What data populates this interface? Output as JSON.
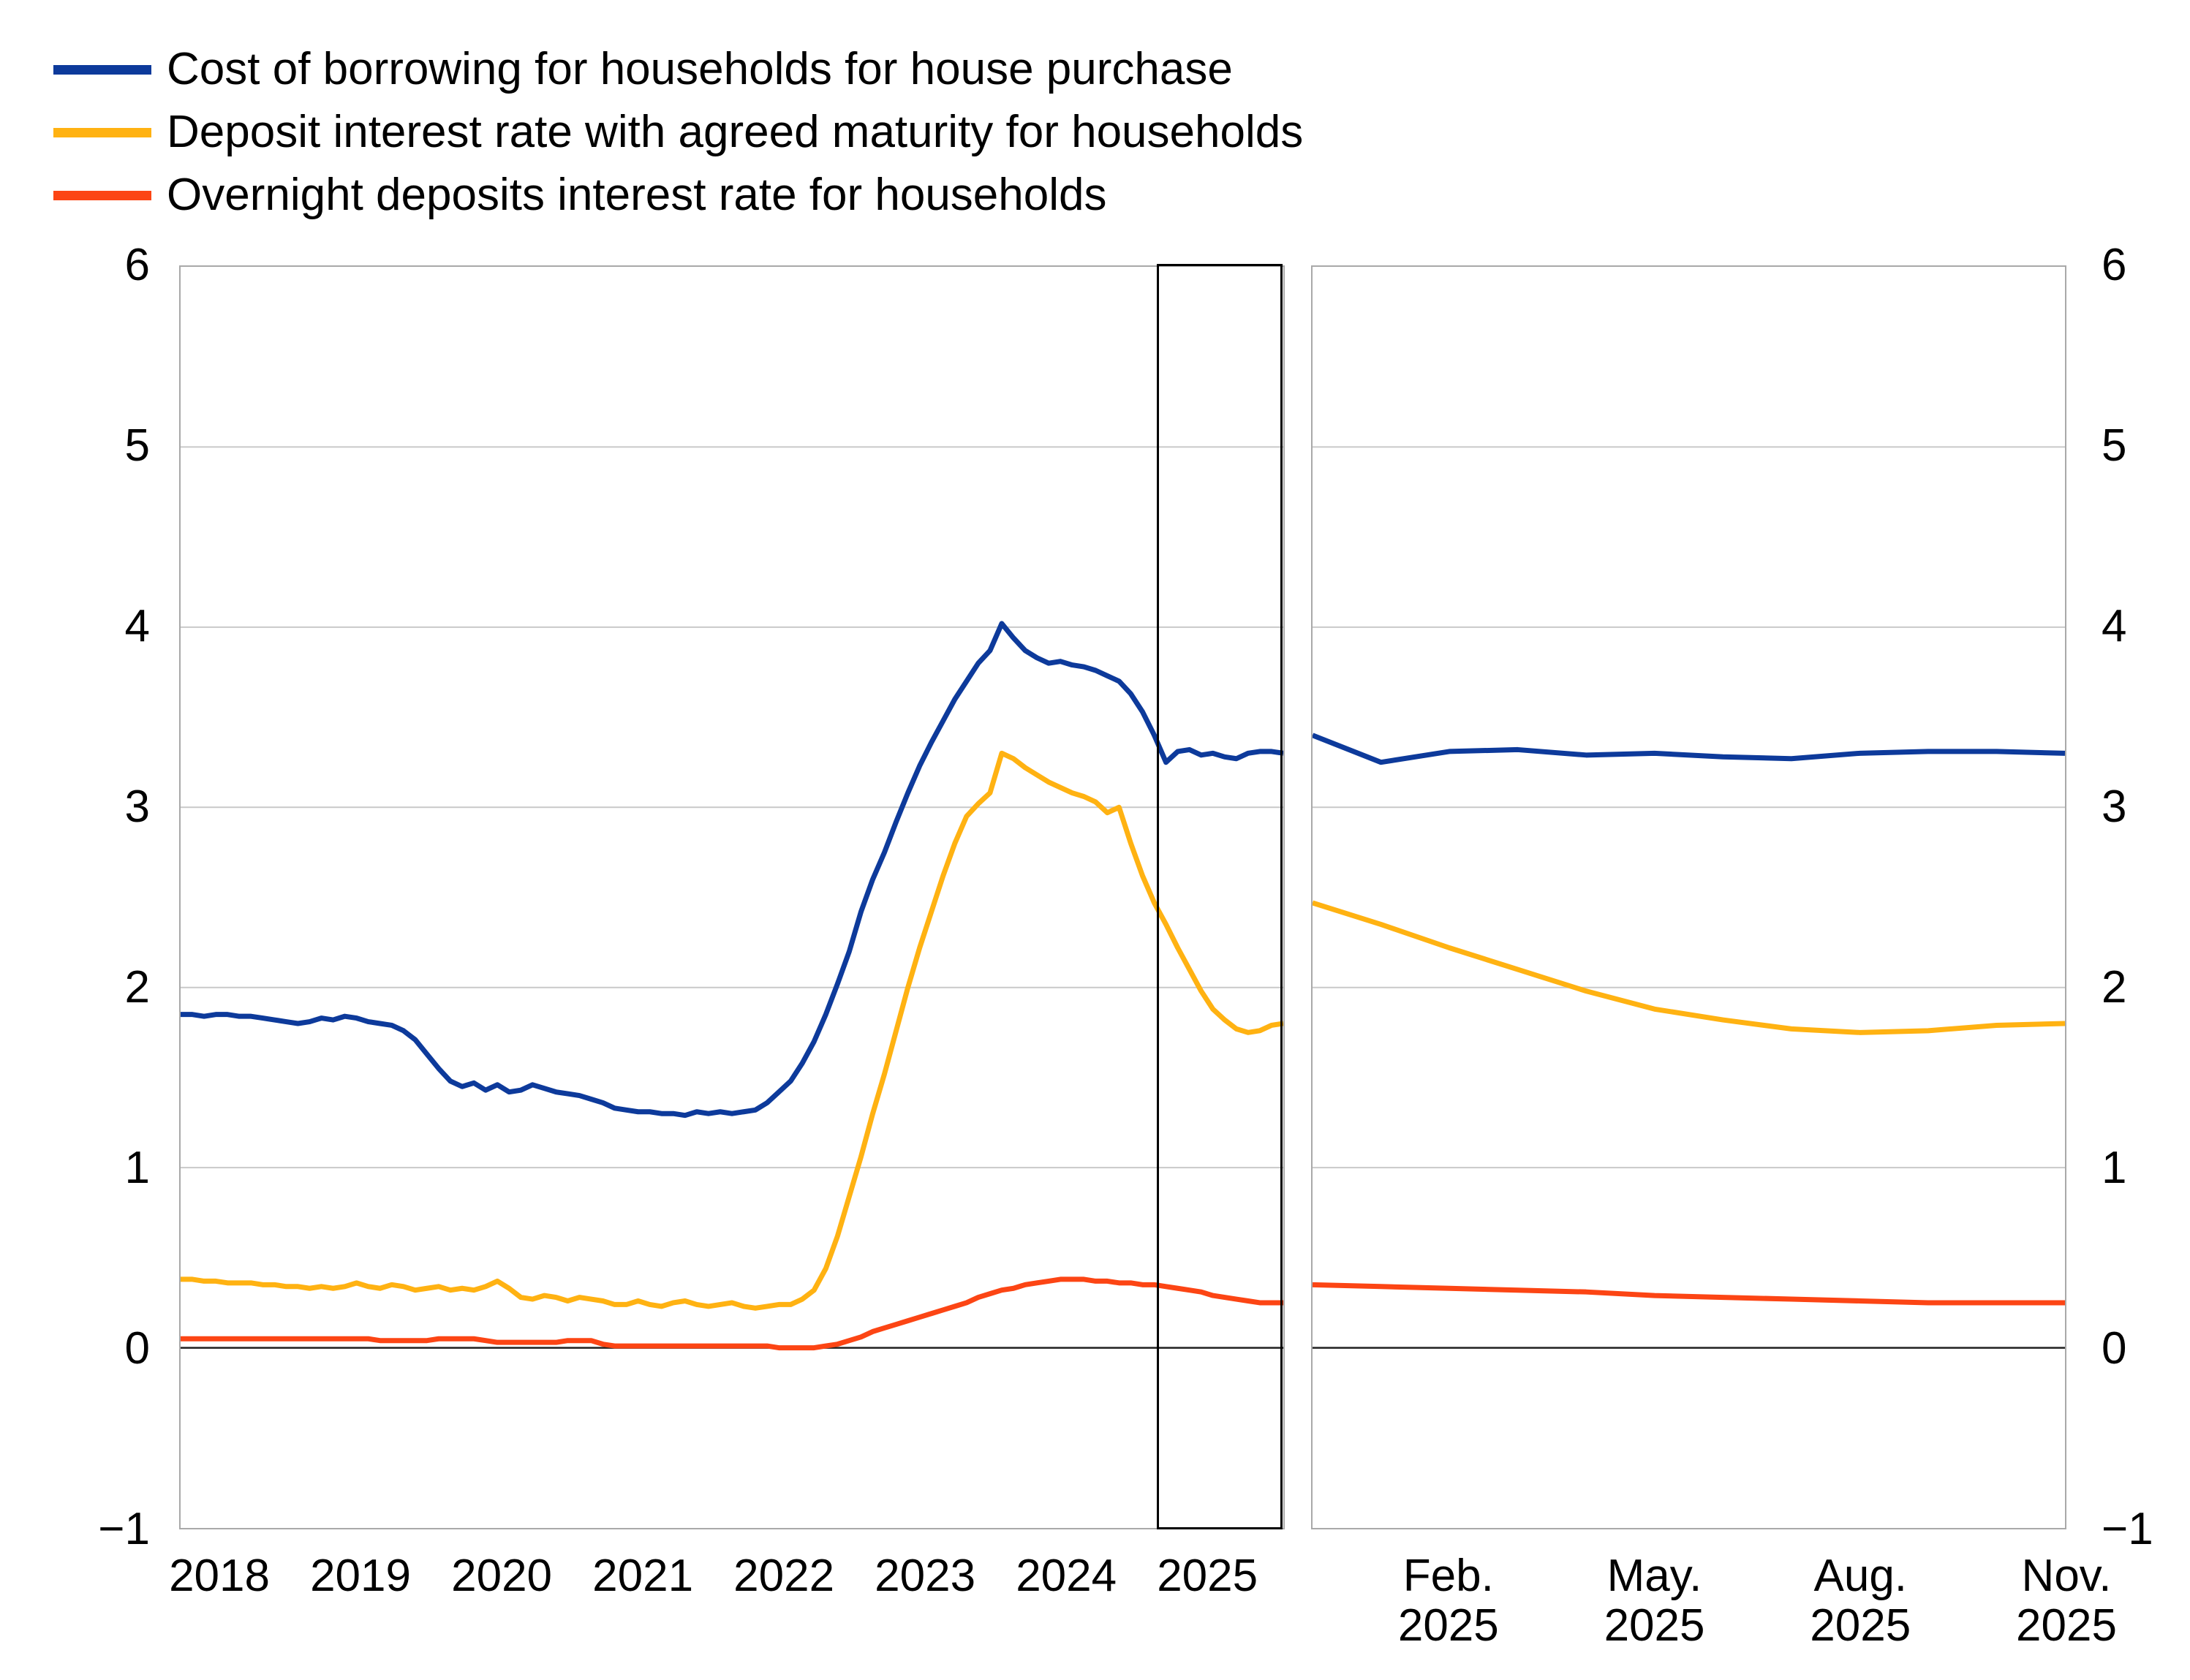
{
  "legend": {
    "items": [
      {
        "label": "Cost of borrowing for households for house purchase",
        "color": "#0d3a9b"
      },
      {
        "label": "Deposit interest rate with agreed maturity for households",
        "color": "#ffb212"
      },
      {
        "label": "Overnight deposits interest rate for households",
        "color": "#fc4514"
      }
    ]
  },
  "chart_data": {
    "type": "line",
    "title": "",
    "frequency": "monthly",
    "x_start": "2018-01",
    "x_end": "2025-11",
    "y_axis": {
      "min": -1,
      "max": 6,
      "tick_values": [
        6,
        5,
        4,
        3,
        2,
        1,
        0,
        -1
      ],
      "tick_labels": [
        "6",
        "5",
        "4",
        "3",
        "2",
        "1",
        "0",
        "−1"
      ],
      "grid_values": [
        5,
        4,
        3,
        2,
        1
      ],
      "zero_line_value": 0,
      "labels_on_both_sides": true
    },
    "left_panel_year_ticks": [
      {
        "label": "2018",
        "month_index": 0
      },
      {
        "label": "2019",
        "month_index": 12
      },
      {
        "label": "2020",
        "month_index": 24
      },
      {
        "label": "2021",
        "month_index": 36
      },
      {
        "label": "2022",
        "month_index": 48
      },
      {
        "label": "2023",
        "month_index": 60
      },
      {
        "label": "2024",
        "month_index": 72
      },
      {
        "label": "2025",
        "month_index": 84
      }
    ],
    "detail_panel": {
      "start_index": 83,
      "months": 12,
      "tick_labels": [
        {
          "month": "Feb.",
          "year": "2025",
          "index": 2
        },
        {
          "month": "May.",
          "year": "2025",
          "index": 5
        },
        {
          "month": "Aug.",
          "year": "2025",
          "index": 8
        },
        {
          "month": "Nov.",
          "year": "2025",
          "index": 11
        }
      ]
    },
    "highlight_box": {
      "start_index": 83,
      "end_index": 94
    },
    "series": [
      {
        "name": "Cost of borrowing for households for house purchase",
        "color": "#0d3a9b",
        "values": [
          1.85,
          1.85,
          1.84,
          1.85,
          1.85,
          1.84,
          1.84,
          1.83,
          1.82,
          1.81,
          1.8,
          1.81,
          1.83,
          1.82,
          1.84,
          1.83,
          1.81,
          1.8,
          1.79,
          1.76,
          1.71,
          1.63,
          1.55,
          1.48,
          1.45,
          1.47,
          1.43,
          1.46,
          1.42,
          1.43,
          1.46,
          1.44,
          1.42,
          1.41,
          1.4,
          1.38,
          1.36,
          1.33,
          1.32,
          1.31,
          1.31,
          1.3,
          1.3,
          1.29,
          1.31,
          1.3,
          1.31,
          1.3,
          1.31,
          1.32,
          1.36,
          1.42,
          1.48,
          1.58,
          1.7,
          1.85,
          2.02,
          2.2,
          2.42,
          2.6,
          2.75,
          2.92,
          3.08,
          3.23,
          3.36,
          3.48,
          3.6,
          3.7,
          3.8,
          3.87,
          4.02,
          3.94,
          3.87,
          3.83,
          3.8,
          3.81,
          3.79,
          3.78,
          3.76,
          3.73,
          3.7,
          3.63,
          3.53,
          3.4,
          3.25,
          3.31,
          3.32,
          3.29,
          3.3,
          3.28,
          3.27,
          3.3,
          3.31,
          3.31,
          3.3
        ]
      },
      {
        "name": "Deposit interest rate with agreed maturity for households",
        "color": "#ffb212",
        "values": [
          0.38,
          0.38,
          0.37,
          0.37,
          0.36,
          0.36,
          0.36,
          0.35,
          0.35,
          0.34,
          0.34,
          0.33,
          0.34,
          0.33,
          0.34,
          0.36,
          0.34,
          0.33,
          0.35,
          0.34,
          0.32,
          0.33,
          0.34,
          0.32,
          0.33,
          0.32,
          0.34,
          0.37,
          0.33,
          0.28,
          0.27,
          0.29,
          0.28,
          0.26,
          0.28,
          0.27,
          0.26,
          0.24,
          0.24,
          0.26,
          0.24,
          0.23,
          0.25,
          0.26,
          0.24,
          0.23,
          0.24,
          0.25,
          0.23,
          0.22,
          0.23,
          0.24,
          0.24,
          0.27,
          0.32,
          0.44,
          0.62,
          0.84,
          1.06,
          1.3,
          1.52,
          1.76,
          2.0,
          2.22,
          2.42,
          2.62,
          2.8,
          2.95,
          3.02,
          3.08,
          3.3,
          3.27,
          3.22,
          3.18,
          3.14,
          3.11,
          3.08,
          3.06,
          3.03,
          2.97,
          3.0,
          2.8,
          2.62,
          2.47,
          2.35,
          2.22,
          2.1,
          1.98,
          1.88,
          1.82,
          1.77,
          1.75,
          1.76,
          1.79,
          1.8
        ]
      },
      {
        "name": "Overnight deposits interest rate for households",
        "color": "#fc4514",
        "values": [
          0.05,
          0.05,
          0.05,
          0.05,
          0.05,
          0.05,
          0.05,
          0.05,
          0.05,
          0.05,
          0.05,
          0.05,
          0.05,
          0.05,
          0.05,
          0.05,
          0.05,
          0.04,
          0.04,
          0.04,
          0.04,
          0.04,
          0.05,
          0.05,
          0.05,
          0.05,
          0.04,
          0.03,
          0.03,
          0.03,
          0.03,
          0.03,
          0.03,
          0.04,
          0.04,
          0.04,
          0.02,
          0.01,
          0.01,
          0.01,
          0.01,
          0.01,
          0.01,
          0.01,
          0.01,
          0.01,
          0.01,
          0.01,
          0.01,
          0.01,
          0.01,
          0.0,
          0.0,
          0.0,
          0.0,
          0.01,
          0.02,
          0.04,
          0.06,
          0.09,
          0.11,
          0.13,
          0.15,
          0.17,
          0.19,
          0.21,
          0.23,
          0.25,
          0.28,
          0.3,
          0.32,
          0.33,
          0.35,
          0.36,
          0.37,
          0.38,
          0.38,
          0.38,
          0.37,
          0.37,
          0.36,
          0.36,
          0.35,
          0.35,
          0.34,
          0.33,
          0.32,
          0.31,
          0.29,
          0.28,
          0.27,
          0.26,
          0.25,
          0.25,
          0.25
        ]
      }
    ],
    "layout_hints": {
      "grid": "horizontal-only",
      "legend_position": "top-left",
      "two_panels": true
    }
  }
}
